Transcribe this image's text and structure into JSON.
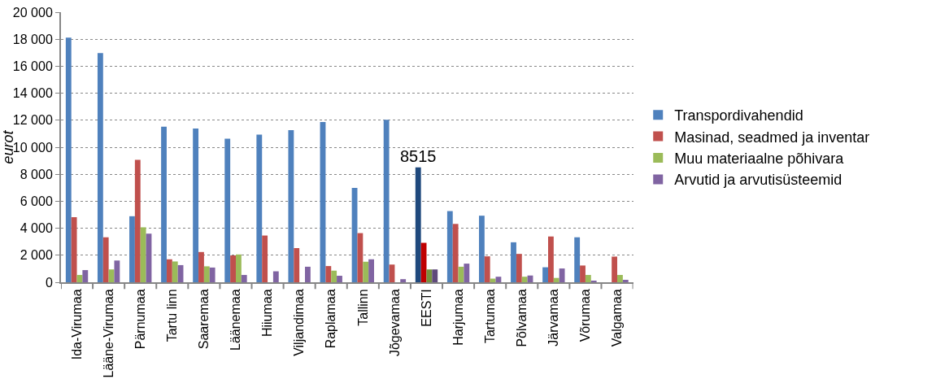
{
  "chart_data": {
    "type": "bar",
    "ylabel": "eurot",
    "categories": [
      "Ida-Virumaa",
      "Lääne-Virumaa",
      "Pärnumaa",
      "Tartu linn",
      "Saaremaa",
      "Läänemaa",
      "Hiiumaa",
      "Viljandimaa",
      "Raplamaa",
      "Tallinn",
      "Jõgevamaa",
      "EESTI",
      "Harjumaa",
      "Tartumaa",
      "Põlvamaa",
      "Järvamaa",
      "Võrumaa",
      "Valgamaa"
    ],
    "series": [
      {
        "name": "Transpordivahendid",
        "color": "#4f81bd",
        "colors": [
          null,
          null,
          null,
          null,
          null,
          null,
          null,
          null,
          null,
          null,
          null,
          "#1f497d",
          null,
          null,
          null,
          null,
          null,
          null
        ],
        "values": [
          18120,
          16970,
          4890,
          11520,
          11380,
          10630,
          10930,
          11270,
          11860,
          6990,
          12040,
          8515,
          5270,
          4930,
          2960,
          1110,
          3330,
          0
        ],
        "value_labels": [
          null,
          null,
          null,
          null,
          null,
          null,
          null,
          null,
          null,
          null,
          null,
          "8515",
          null,
          null,
          null,
          null,
          null,
          null
        ]
      },
      {
        "name": "Masinad, seadmed ja inventar",
        "color": "#c0504d",
        "colors": [
          null,
          null,
          null,
          null,
          null,
          null,
          null,
          null,
          null,
          null,
          null,
          "#c00000",
          null,
          null,
          null,
          null,
          null,
          null
        ],
        "values": [
          4820,
          3330,
          9070,
          1700,
          2240,
          1990,
          3460,
          2530,
          1200,
          3640,
          1310,
          2920,
          4320,
          1920,
          2100,
          3390,
          1240,
          1900
        ]
      },
      {
        "name": "Muu materiaalne põhivara",
        "color": "#9bbb59",
        "colors": [
          null,
          null,
          null,
          null,
          null,
          null,
          null,
          null,
          null,
          null,
          null,
          "#76923c",
          null,
          null,
          null,
          null,
          null,
          null
        ],
        "values": [
          540,
          950,
          4070,
          1540,
          1180,
          2060,
          0,
          0,
          860,
          1520,
          0,
          950,
          1150,
          270,
          410,
          320,
          540,
          540
        ]
      },
      {
        "name": "Arvutid ja arvutisüsteemid",
        "color": "#8064a2",
        "colors": [
          null,
          null,
          null,
          null,
          null,
          null,
          null,
          null,
          null,
          null,
          null,
          "#604a7b",
          null,
          null,
          null,
          null,
          null,
          null
        ],
        "values": [
          900,
          1610,
          3600,
          1270,
          1090,
          540,
          810,
          1150,
          480,
          1700,
          230,
          950,
          1380,
          410,
          500,
          1020,
          90,
          180
        ]
      }
    ],
    "ylim": [
      0,
      20000
    ],
    "yticks": [
      {
        "value": 0,
        "label": "0"
      },
      {
        "value": 2000,
        "label": "2 000"
      },
      {
        "value": 4000,
        "label": "4 000"
      },
      {
        "value": 6000,
        "label": "6 000"
      },
      {
        "value": 8000,
        "label": "8 000"
      },
      {
        "value": 10000,
        "label": "10 000"
      },
      {
        "value": 12000,
        "label": "12 000"
      },
      {
        "value": 14000,
        "label": "14 000"
      },
      {
        "value": 16000,
        "label": "16 000"
      },
      {
        "value": 18000,
        "label": "18 000"
      },
      {
        "value": 20000,
        "label": "20 000"
      }
    ],
    "grid": "y",
    "legend": "right"
  }
}
